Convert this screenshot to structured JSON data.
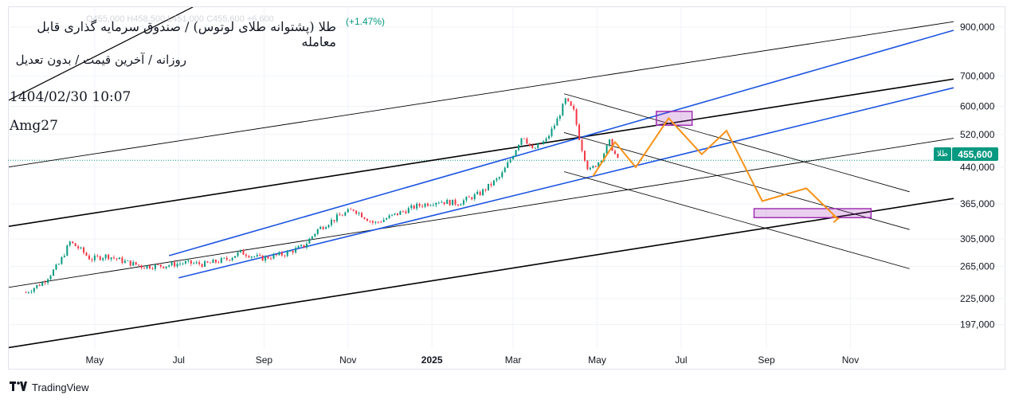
{
  "header": {
    "title": "طلا (پشتوانه طلای لوتوس) / صندوق سرمایه گذاری قابل معامله",
    "subtitle": "روزانه / آخرین قیمت / بدون تعدیل",
    "datetime": "1404/02/30 10:07",
    "author": "Amg27",
    "change": "(+1.47%)",
    "ohlc_partial": "O455,000 H458,500 L451,000 C455,600 +6,600"
  },
  "price_badge": {
    "symbol": "طلا",
    "value": "455,600",
    "color": "#089981"
  },
  "footer": {
    "brand": "TradingView"
  },
  "chart_data": {
    "type": "line",
    "scale": "log",
    "ylim": [
      174000,
      1000000
    ],
    "last_price": 455600,
    "y_ticks": [
      {
        "label": "900,000",
        "value": 900000
      },
      {
        "label": "700,000",
        "value": 700000
      },
      {
        "label": "600,000",
        "value": 600000
      },
      {
        "label": "520,000",
        "value": 520000
      },
      {
        "label": "440,000",
        "value": 440000
      },
      {
        "label": "365,000",
        "value": 365000
      },
      {
        "label": "305,000",
        "value": 305000
      },
      {
        "label": "265,000",
        "value": 265000
      },
      {
        "label": "225,000",
        "value": 225000
      },
      {
        "label": "197,000",
        "value": 197000
      }
    ],
    "x_ticks": [
      {
        "label": "May",
        "date": "2024-05-01",
        "bold": false
      },
      {
        "label": "Jul",
        "date": "2024-07-01",
        "bold": false
      },
      {
        "label": "Sep",
        "date": "2024-09-01",
        "bold": false
      },
      {
        "label": "Nov",
        "date": "2024-11-01",
        "bold": false
      },
      {
        "label": "2025",
        "date": "2025-01-01",
        "bold": true
      },
      {
        "label": "Mar",
        "date": "2025-03-01",
        "bold": false
      },
      {
        "label": "May",
        "date": "2025-05-01",
        "bold": false
      },
      {
        "label": "Jul",
        "date": "2025-07-01",
        "bold": false
      },
      {
        "label": "Sep",
        "date": "2025-09-01",
        "bold": false
      },
      {
        "label": "Nov",
        "date": "2025-11-01",
        "bold": false
      }
    ],
    "price_path": [
      [
        "2024-03-12",
        232000
      ],
      [
        "2024-03-25",
        245000
      ],
      [
        "2024-04-05",
        268000
      ],
      [
        "2024-04-13",
        300000
      ],
      [
        "2024-04-20",
        290000
      ],
      [
        "2024-04-28",
        275000
      ],
      [
        "2024-05-10",
        280000
      ],
      [
        "2024-05-22",
        272000
      ],
      [
        "2024-06-05",
        265000
      ],
      [
        "2024-06-20",
        266000
      ],
      [
        "2024-07-05",
        270000
      ],
      [
        "2024-07-20",
        268000
      ],
      [
        "2024-08-05",
        275000
      ],
      [
        "2024-08-15",
        285000
      ],
      [
        "2024-08-30",
        276000
      ],
      [
        "2024-09-15",
        282000
      ],
      [
        "2024-09-30",
        294000
      ],
      [
        "2024-10-10",
        320000
      ],
      [
        "2024-10-25",
        342000
      ],
      [
        "2024-11-05",
        355000
      ],
      [
        "2024-11-20",
        330000
      ],
      [
        "2024-12-05",
        345000
      ],
      [
        "2024-12-20",
        360000
      ],
      [
        "2025-01-05",
        370000
      ],
      [
        "2025-01-20",
        366000
      ],
      [
        "2025-02-05",
        385000
      ],
      [
        "2025-02-20",
        420000
      ],
      [
        "2025-03-01",
        470000
      ],
      [
        "2025-03-08",
        520000
      ],
      [
        "2025-03-15",
        480000
      ],
      [
        "2025-03-25",
        505000
      ],
      [
        "2025-04-02",
        560000
      ],
      [
        "2025-04-08",
        620000
      ],
      [
        "2025-04-14",
        585000
      ],
      [
        "2025-04-19",
        495000
      ],
      [
        "2025-04-25",
        430000
      ],
      [
        "2025-05-03",
        455000
      ],
      [
        "2025-05-10",
        500000
      ],
      [
        "2025-05-16",
        455600
      ]
    ],
    "projection": [
      [
        "2025-04-28",
        420000
      ],
      [
        "2025-05-14",
        500000
      ],
      [
        "2025-05-29",
        440000
      ],
      [
        "2025-06-22",
        565000
      ],
      [
        "2025-07-16",
        470000
      ],
      [
        "2025-08-03",
        530000
      ],
      [
        "2025-08-29",
        370000
      ],
      [
        "2025-09-30",
        395000
      ],
      [
        "2025-10-22",
        340000
      ]
    ],
    "projection_color": "#f7931a",
    "zones": [
      {
        "x": [
          "2025-06-13",
          "2025-07-09"
        ],
        "y": [
          545000,
          585000
        ]
      },
      {
        "x": [
          "2025-08-23",
          "2025-11-16"
        ],
        "y": [
          340000,
          356000
        ]
      }
    ],
    "zone_color": "#9c27b0",
    "trendlines": [
      {
        "from": [
          "2024-02-28",
          175000
        ],
        "to": [
          "2026-01-15",
          375000
        ],
        "color": "#000000",
        "width": 1.6
      },
      {
        "from": [
          "2024-02-28",
          325000
        ],
        "to": [
          "2026-01-15",
          690000
        ],
        "color": "#000000",
        "width": 1.6
      },
      {
        "from": [
          "2024-02-28",
          440000
        ],
        "to": [
          "2026-01-15",
          925000
        ],
        "color": "#000000",
        "width": 0.9
      },
      {
        "from": [
          "2024-02-28",
          238000
        ],
        "to": [
          "2026-01-15",
          510000
        ],
        "color": "#000000",
        "width": 0.9
      },
      {
        "from": [
          "2024-02-28",
          618000
        ],
        "to": [
          "2024-09-24",
          1300000
        ],
        "color": "#000000",
        "width": 1.2
      },
      {
        "from": [
          "2024-06-24",
          280000
        ],
        "to": [
          "2026-01-15",
          885000
        ],
        "color": "#1e56e0",
        "width": 1.6
      },
      {
        "from": [
          "2024-07-01",
          250000
        ],
        "to": [
          "2026-01-15",
          660000
        ],
        "color": "#1e56e0",
        "width": 1.6
      },
      {
        "from": [
          "2025-04-07",
          640000
        ],
        "to": [
          "2025-12-14",
          388000
        ],
        "color": "#000000",
        "width": 0.8
      },
      {
        "from": [
          "2025-04-07",
          525000
        ],
        "to": [
          "2025-12-14",
          320000
        ],
        "color": "#000000",
        "width": 0.8
      },
      {
        "from": [
          "2025-04-07",
          430000
        ],
        "to": [
          "2025-12-14",
          262000
        ],
        "color": "#000000",
        "width": 0.8
      }
    ]
  }
}
